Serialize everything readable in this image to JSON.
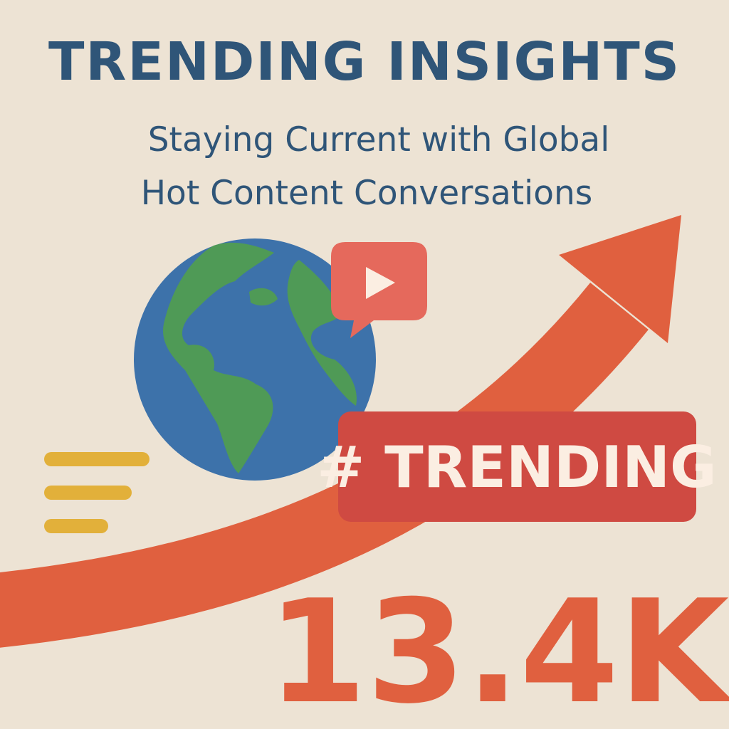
{
  "header": {
    "title": "TRENDING INSIGHTS",
    "subtitle_lines": [
      "Staying Current with Global",
      "Hot Content Conversations"
    ]
  },
  "badge": {
    "label": "# TRENDING"
  },
  "stat": {
    "value": "13.4K"
  }
}
